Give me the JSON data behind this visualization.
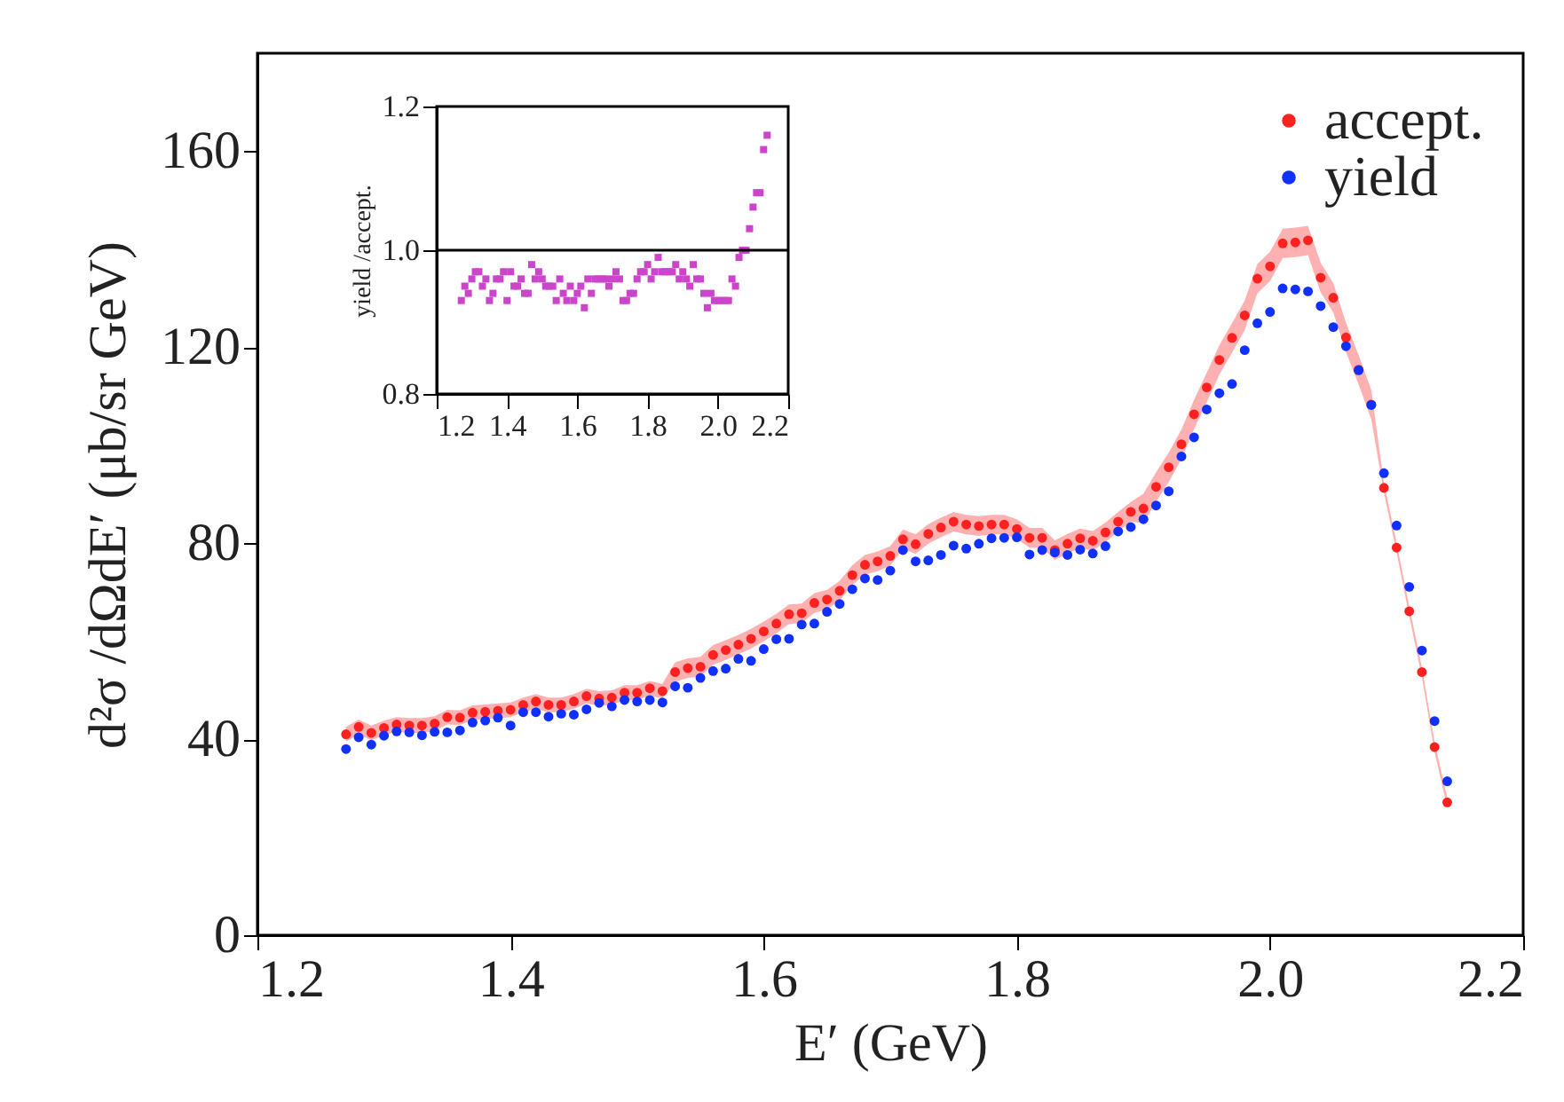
{
  "chart_data": [
    {
      "type": "scatter",
      "xlabel": "E′ (GeV)",
      "ylabel": "d²σ /dΩdE′ (μb/sr GeV)",
      "xlim": [
        1.2,
        2.2
      ],
      "xticks": [
        1.2,
        1.4,
        1.6,
        1.8,
        {
          "value": 2,
          "label": "2.0"
        },
        2.2
      ],
      "ylim": [
        0,
        180
      ],
      "yticks": [
        0,
        40,
        80,
        120,
        160
      ],
      "legend": "top right",
      "marker": "circle",
      "x": [
        1.27,
        1.28,
        1.29,
        1.3,
        1.31,
        1.32,
        1.33,
        1.34,
        1.35,
        1.36,
        1.37,
        1.38,
        1.39,
        1.4,
        1.41,
        1.42,
        1.43,
        1.44,
        1.45,
        1.46,
        1.47,
        1.48,
        1.49,
        1.5,
        1.51,
        1.52,
        1.53,
        1.54,
        1.55,
        1.56,
        1.57,
        1.58,
        1.59,
        1.6,
        1.61,
        1.62,
        1.63,
        1.64,
        1.65,
        1.66,
        1.67,
        1.68,
        1.69,
        1.7,
        1.71,
        1.72,
        1.73,
        1.74,
        1.75,
        1.76,
        1.77,
        1.78,
        1.79,
        1.8,
        1.81,
        1.82,
        1.83,
        1.84,
        1.85,
        1.86,
        1.87,
        1.88,
        1.89,
        1.9,
        1.91,
        1.92,
        1.93,
        1.94,
        1.95,
        1.96,
        1.97,
        1.98,
        1.99,
        2.0,
        2.01,
        2.02,
        2.03,
        2.04,
        2.05,
        2.06,
        2.07,
        2.08,
        2.09,
        2.1,
        2.11,
        2.12,
        2.13,
        2.14
      ],
      "series": [
        {
          "name": "accept.",
          "color": "#ff2020",
          "values": [
            41.0,
            42.5,
            41.3,
            42.3,
            43.0,
            42.8,
            42.8,
            43.2,
            44.5,
            44.4,
            45.4,
            45.6,
            45.8,
            46.0,
            47.0,
            47.7,
            47.0,
            47.0,
            47.7,
            48.8,
            48.3,
            48.5,
            49.5,
            49.5,
            50.4,
            49.8,
            53.7,
            54.5,
            54.8,
            57.2,
            58.2,
            59.3,
            60.5,
            62.0,
            63.6,
            65.5,
            65.7,
            67.8,
            68.5,
            70.3,
            73.5,
            75.6,
            76.3,
            77.4,
            80.8,
            79.8,
            81.9,
            83.2,
            84.4,
            83.8,
            83.5,
            83.8,
            83.8,
            82.9,
            81.1,
            81.1,
            78.6,
            79.9,
            81.0,
            80.5,
            82.2,
            84.4,
            86.4,
            87.1,
            91.5,
            95.5,
            100.2,
            106.3,
            111.8,
            117.4,
            121.9,
            126.5,
            134.0,
            136.5,
            141.2,
            141.4,
            141.8,
            134.2,
            130.1,
            122.0,
            115.4,
            108.3,
            91.3,
            79.1,
            66.1,
            53.7,
            38.4,
            27.1
          ],
          "lower": [
            39.5,
            41.0,
            39.8,
            40.8,
            41.5,
            41.3,
            41.3,
            41.7,
            43.0,
            42.9,
            43.9,
            44.1,
            44.3,
            44.5,
            45.5,
            46.2,
            45.5,
            45.5,
            46.2,
            47.3,
            46.8,
            47.0,
            48.0,
            48.0,
            48.9,
            48.3,
            51.7,
            52.5,
            52.8,
            55.2,
            56.2,
            57.3,
            58.5,
            60.0,
            61.6,
            63.5,
            63.7,
            65.8,
            66.5,
            68.3,
            71.5,
            73.6,
            74.3,
            75.4,
            78.8,
            77.8,
            79.9,
            81.2,
            82.4,
            81.8,
            81.5,
            81.8,
            81.8,
            80.9,
            79.1,
            79.1,
            76.6,
            77.9,
            79.0,
            78.5,
            80.2,
            82.4,
            84.4,
            84.1,
            88.5,
            92.5,
            97.2,
            103.3,
            108.8,
            114.4,
            118.9,
            123.5,
            131.0,
            133.5,
            138.2,
            138.4,
            138.8,
            131.2,
            127.1,
            119.0,
            112.4,
            105.3,
            90.3,
            78.1,
            65.1,
            52.7,
            37.4,
            26.1
          ],
          "upper": [
            42.5,
            44.0,
            42.8,
            43.8,
            44.5,
            44.3,
            44.3,
            44.7,
            46.0,
            45.9,
            46.9,
            47.1,
            47.3,
            47.5,
            48.5,
            49.2,
            48.5,
            48.5,
            49.2,
            50.3,
            49.8,
            50.0,
            51.0,
            51.0,
            51.9,
            51.3,
            55.7,
            56.5,
            56.8,
            59.2,
            60.2,
            61.3,
            62.5,
            64.0,
            65.6,
            67.5,
            67.7,
            69.8,
            70.5,
            72.3,
            75.5,
            77.6,
            78.3,
            79.4,
            82.8,
            81.8,
            83.9,
            85.2,
            86.4,
            85.8,
            85.5,
            85.8,
            85.8,
            84.9,
            83.1,
            83.1,
            80.6,
            81.9,
            83.0,
            82.5,
            84.2,
            86.4,
            88.4,
            90.1,
            94.5,
            98.5,
            103.2,
            109.3,
            114.8,
            120.4,
            124.9,
            129.5,
            137.0,
            139.5,
            144.2,
            144.4,
            144.8,
            137.2,
            133.1,
            125.0,
            118.4,
            111.3,
            92.3,
            80.1,
            67.1,
            54.7,
            39.4,
            28.1
          ]
        },
        {
          "name": "yield",
          "color": "#1030ff",
          "values": [
            38.0,
            40.4,
            38.9,
            40.7,
            41.6,
            41.4,
            40.8,
            41.5,
            41.4,
            41.8,
            43.4,
            43.8,
            44.4,
            42.8,
            45.5,
            45.5,
            44.6,
            45.2,
            45.0,
            46.1,
            47.4,
            46.7,
            48.0,
            47.7,
            48.0,
            47.5,
            50.8,
            50.5,
            52.5,
            53.9,
            54.4,
            56.4,
            56.0,
            58.4,
            60.4,
            60.5,
            63.4,
            63.6,
            66.0,
            67.6,
            70.6,
            72.8,
            72.5,
            74.4,
            78.6,
            76.3,
            76.5,
            77.6,
            79.5,
            78.9,
            79.9,
            81.0,
            81.1,
            81.2,
            77.7,
            78.6,
            78.1,
            77.6,
            78.7,
            77.9,
            79.4,
            82.4,
            83.3,
            84.9,
            87.7,
            90.6,
            97.7,
            101.6,
            107.3,
            110.6,
            112.5,
            119.4,
            124.9,
            127.2,
            132.0,
            131.8,
            131.4,
            128.4,
            124.1,
            120.2,
            115.3,
            108.2,
            94.3,
            83.6,
            71.1,
            58.1,
            43.7,
            31.4
          ]
        }
      ]
    },
    {
      "type": "scatter",
      "ylabel": "yield /accept.",
      "xlim": [
        1.2,
        2.2
      ],
      "xticks": [
        1.2,
        1.4,
        1.6,
        1.8,
        {
          "value": 2,
          "label": "2.0"
        },
        2.2
      ],
      "ylim": [
        0.8,
        1.2
      ],
      "yticks": [
        0.8,
        {
          "value": 1,
          "label": "1.0"
        },
        1.2
      ],
      "marker": "square",
      "x": [
        1.27,
        1.28,
        1.29,
        1.3,
        1.31,
        1.32,
        1.33,
        1.34,
        1.35,
        1.36,
        1.37,
        1.38,
        1.39,
        1.4,
        1.41,
        1.42,
        1.43,
        1.44,
        1.45,
        1.46,
        1.47,
        1.48,
        1.49,
        1.5,
        1.51,
        1.52,
        1.53,
        1.54,
        1.55,
        1.56,
        1.57,
        1.58,
        1.59,
        1.6,
        1.61,
        1.62,
        1.63,
        1.64,
        1.65,
        1.66,
        1.67,
        1.68,
        1.69,
        1.7,
        1.71,
        1.72,
        1.73,
        1.74,
        1.75,
        1.76,
        1.77,
        1.78,
        1.79,
        1.8,
        1.81,
        1.82,
        1.83,
        1.84,
        1.85,
        1.86,
        1.87,
        1.88,
        1.89,
        1.9,
        1.91,
        1.92,
        1.93,
        1.94,
        1.95,
        1.96,
        1.97,
        1.98,
        1.99,
        2.0,
        2.01,
        2.02,
        2.03,
        2.04,
        2.05,
        2.06,
        2.07,
        2.08,
        2.09,
        2.1,
        2.11,
        2.12,
        2.13,
        2.14
      ],
      "series": [
        {
          "color": "#cc44cc",
          "values": [
            0.93,
            0.95,
            0.94,
            0.96,
            0.97,
            0.97,
            0.95,
            0.96,
            0.93,
            0.94,
            0.96,
            0.96,
            0.97,
            0.93,
            0.97,
            0.95,
            0.95,
            0.96,
            0.94,
            0.94,
            0.98,
            0.96,
            0.97,
            0.96,
            0.95,
            0.95,
            0.95,
            0.93,
            0.96,
            0.94,
            0.93,
            0.95,
            0.93,
            0.94,
            0.95,
            0.92,
            0.96,
            0.94,
            0.96,
            0.96,
            0.96,
            0.96,
            0.95,
            0.96,
            0.97,
            0.96,
            0.93,
            0.93,
            0.94,
            0.94,
            0.96,
            0.97,
            0.97,
            0.98,
            0.96,
            0.97,
            0.99,
            0.97,
            0.97,
            0.97,
            0.97,
            0.98,
            0.96,
            0.97,
            0.96,
            0.95,
            0.98,
            0.96,
            0.96,
            0.94,
            0.92,
            0.94,
            0.93,
            0.93,
            0.93,
            0.93,
            0.93,
            0.96,
            0.95,
            0.99,
            1.0,
            1.0,
            1.03,
            1.06,
            1.08,
            1.08,
            1.14,
            1.16
          ]
        }
      ],
      "ref_lines": [
        {
          "axis": "y",
          "value": 1,
          "color": "#000000"
        }
      ]
    }
  ]
}
